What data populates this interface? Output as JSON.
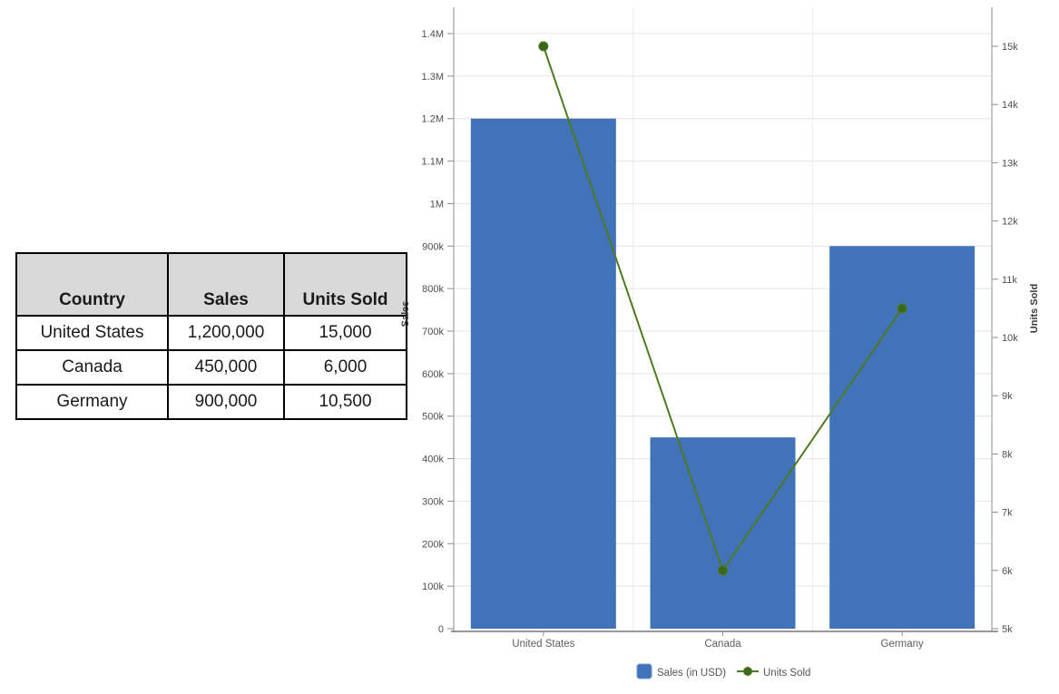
{
  "table": {
    "headers": [
      "Country",
      "Sales",
      "Units Sold"
    ],
    "rows": [
      [
        "United States",
        "1,200,000",
        "15,000"
      ],
      [
        "Canada",
        "450,000",
        "6,000"
      ],
      [
        "Germany",
        "900,000",
        "10,500"
      ]
    ]
  },
  "chart_data": {
    "type": "bar+line combo, dual y-axes",
    "categories": [
      "United States",
      "Canada",
      "Germany"
    ],
    "series": [
      {
        "name": "Sales (in USD)",
        "type": "bar",
        "axis": "left",
        "values": [
          1200000,
          450000,
          900000
        ]
      },
      {
        "name": "Units Sold",
        "type": "line",
        "axis": "right",
        "values": [
          15000,
          6000,
          10500
        ]
      }
    ],
    "left_axis": {
      "title": "Sales",
      "min": 0,
      "max": 1400000,
      "tick_step": 100000,
      "tick_labels": [
        "0",
        "100k",
        "200k",
        "300k",
        "400k",
        "500k",
        "600k",
        "700k",
        "800k",
        "900k",
        "1M",
        "1.1M",
        "1.2M",
        "1.3M",
        "1.4M"
      ]
    },
    "right_axis": {
      "title": "Units Sold",
      "min": 5000,
      "max": 15000,
      "tick_step": 1000,
      "tick_labels": [
        "5k",
        "6k",
        "7k",
        "8k",
        "9k",
        "10k",
        "11k",
        "12k",
        "13k",
        "14k",
        "15k"
      ]
    },
    "legend": {
      "position": "bottom-center",
      "items": [
        "Sales (in USD)",
        "Units Sold"
      ]
    },
    "grid": true
  },
  "colors": {
    "bar": "#4273b9",
    "bar_edge": "#6b97cf",
    "line": "#4e7a21",
    "marker": "#3a671c",
    "grid_h": "#e4e4e4",
    "grid_v": "#ececec",
    "axis_line": "#8c8c8c",
    "x_axis_line": "#777777",
    "tick_text": "#4f4f51",
    "category_text": "#5d5d5d",
    "axis_title_text": "#3a3a3a",
    "legend_text": "#555555",
    "table_header_bg": "#d9d9d9",
    "table_border": "#000000"
  }
}
